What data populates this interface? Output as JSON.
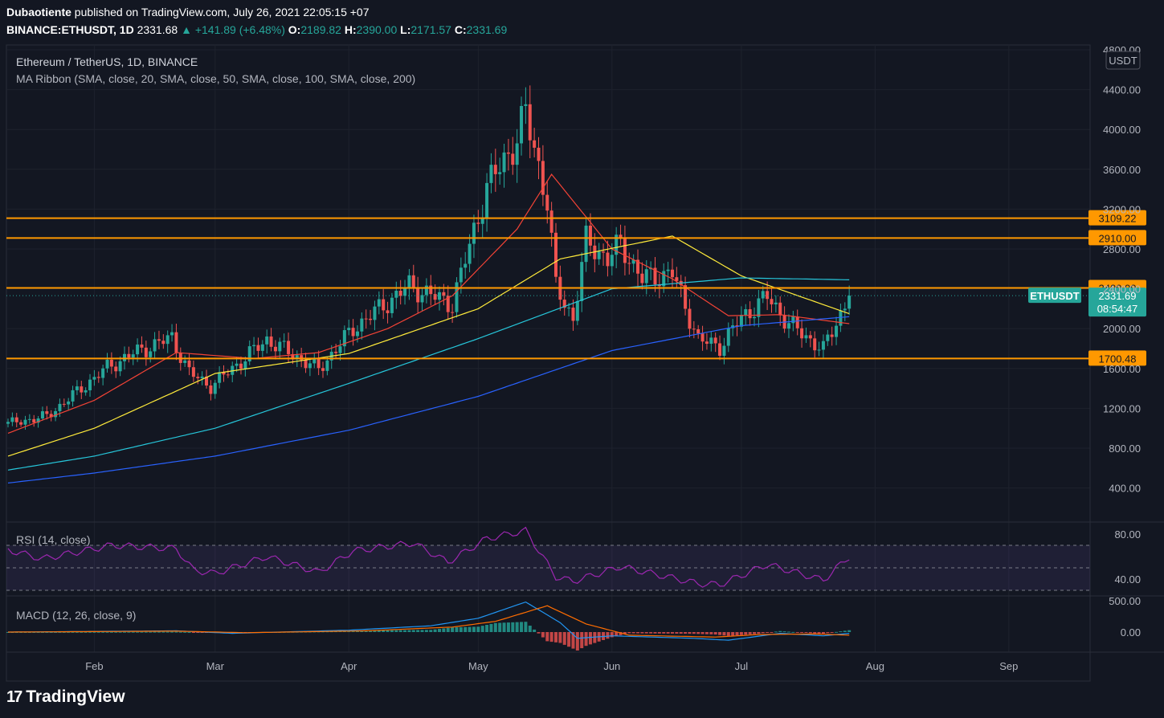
{
  "header": {
    "author": "Dubaotiente",
    "published_text": "published on TradingView.com, July 26, 2021 22:05:15 +07",
    "symbol": "BINANCE:ETHUSDT, 1D",
    "last": "2331.68",
    "change": "▲ +141.89 (+6.48%)",
    "o_label": "O:",
    "o": "2189.82",
    "h_label": "H:",
    "h": "2390.00",
    "l_label": "L:",
    "l": "2171.57",
    "c_label": "C:",
    "c": "2331.69"
  },
  "footer": {
    "brand": "TradingView",
    "logo": "17"
  },
  "colors": {
    "background": "#131722",
    "grid": "#1e222d",
    "up": "#26a69a",
    "down": "#ef5350",
    "level": "#ff9800",
    "ma20": "#f44336",
    "ma50": "#ffeb3b",
    "ma100": "#26c6da",
    "ma200": "#2962ff",
    "rsi": "#9c27b0",
    "macd": "#2196f3",
    "signal": "#ff6d00",
    "label_text": "#131722"
  },
  "chart_data": [
    {
      "type": "candlestick",
      "title": "Ethereum / TetherUS, 1D, BINANCE",
      "indicator_label": "MA Ribbon (SMA, close, 20, SMA, close, 50, SMA, close, 100, SMA, close, 200)",
      "x_ticks": [
        "Feb",
        "Mar",
        "Apr",
        "May",
        "Jun",
        "Jul",
        "Aug",
        "Sep"
      ],
      "x_tick_dates": [
        "2021-02-01",
        "2021-03-01",
        "2021-04-01",
        "2021-05-01",
        "2021-06-01",
        "2021-07-01",
        "2021-08-01",
        "2021-09-01"
      ],
      "x_range": [
        "2021-01-12",
        "2021-09-24"
      ],
      "y_ticks": [
        "4800.00",
        "4400.00",
        "4000.00",
        "3600.00",
        "3200.00",
        "2800.00",
        "2400.00",
        "2000.00",
        "1600.00",
        "1200.00",
        "800.00",
        "400.00"
      ],
      "y_range": [
        0,
        4800
      ],
      "currency": "USDT",
      "key_points": [
        {
          "date": "2021-01-12",
          "close": 1045
        },
        {
          "date": "2021-01-21",
          "close": 1120
        },
        {
          "date": "2021-02-04",
          "close": 1610
        },
        {
          "date": "2021-02-10",
          "close": 1750
        },
        {
          "date": "2021-02-19",
          "close": 1910
        },
        {
          "date": "2021-02-23",
          "close": 1560
        },
        {
          "date": "2021-02-28",
          "close": 1420
        },
        {
          "date": "2021-03-13",
          "close": 1890
        },
        {
          "date": "2021-03-25",
          "close": 1590
        },
        {
          "date": "2021-04-02",
          "close": 2000
        },
        {
          "date": "2021-04-15",
          "close": 2430
        },
        {
          "date": "2021-04-22",
          "close": 2300
        },
        {
          "date": "2021-04-25",
          "close": 2250
        },
        {
          "date": "2021-05-03",
          "close": 3420
        },
        {
          "date": "2021-05-10",
          "close": 3900
        },
        {
          "date": "2021-05-12",
          "close": 4170
        },
        {
          "date": "2021-05-17",
          "close": 3280
        },
        {
          "date": "2021-05-19",
          "close": 2420
        },
        {
          "date": "2021-05-23",
          "close": 2100
        },
        {
          "date": "2021-05-26",
          "close": 2880
        },
        {
          "date": "2021-05-31",
          "close": 2700
        },
        {
          "date": "2021-06-03",
          "close": 2850
        },
        {
          "date": "2021-06-08",
          "close": 2500
        },
        {
          "date": "2021-06-15",
          "close": 2560
        },
        {
          "date": "2021-06-21",
          "close": 1890
        },
        {
          "date": "2021-06-26",
          "close": 1820
        },
        {
          "date": "2021-07-01",
          "close": 2110
        },
        {
          "date": "2021-07-07",
          "close": 2320
        },
        {
          "date": "2021-07-12",
          "close": 2050
        },
        {
          "date": "2021-07-20",
          "close": 1790
        },
        {
          "date": "2021-07-26",
          "close": 2331.69
        }
      ],
      "moving_averages": {
        "ma20": [
          {
            "date": "2021-01-12",
            "value": 950
          },
          {
            "date": "2021-02-01",
            "value": 1280
          },
          {
            "date": "2021-02-20",
            "value": 1760
          },
          {
            "date": "2021-03-10",
            "value": 1700
          },
          {
            "date": "2021-03-25",
            "value": 1760
          },
          {
            "date": "2021-04-10",
            "value": 2000
          },
          {
            "date": "2021-04-25",
            "value": 2330
          },
          {
            "date": "2021-05-10",
            "value": 3000
          },
          {
            "date": "2021-05-18",
            "value": 3550
          },
          {
            "date": "2021-06-01",
            "value": 2800
          },
          {
            "date": "2021-06-15",
            "value": 2500
          },
          {
            "date": "2021-06-28",
            "value": 2130
          },
          {
            "date": "2021-07-10",
            "value": 2140
          },
          {
            "date": "2021-07-26",
            "value": 2050
          }
        ],
        "ma50": [
          {
            "date": "2021-01-12",
            "value": 720
          },
          {
            "date": "2021-02-01",
            "value": 1000
          },
          {
            "date": "2021-03-01",
            "value": 1550
          },
          {
            "date": "2021-04-01",
            "value": 1750
          },
          {
            "date": "2021-05-01",
            "value": 2200
          },
          {
            "date": "2021-05-20",
            "value": 2700
          },
          {
            "date": "2021-06-15",
            "value": 2930
          },
          {
            "date": "2021-07-01",
            "value": 2530
          },
          {
            "date": "2021-07-26",
            "value": 2150
          }
        ],
        "ma100": [
          {
            "date": "2021-01-12",
            "value": 580
          },
          {
            "date": "2021-02-01",
            "value": 720
          },
          {
            "date": "2021-03-01",
            "value": 1000
          },
          {
            "date": "2021-04-01",
            "value": 1450
          },
          {
            "date": "2021-05-01",
            "value": 1900
          },
          {
            "date": "2021-06-01",
            "value": 2400
          },
          {
            "date": "2021-07-01",
            "value": 2510
          },
          {
            "date": "2021-07-26",
            "value": 2490
          }
        ],
        "ma200": [
          {
            "date": "2021-01-12",
            "value": 450
          },
          {
            "date": "2021-02-01",
            "value": 550
          },
          {
            "date": "2021-03-01",
            "value": 720
          },
          {
            "date": "2021-04-01",
            "value": 980
          },
          {
            "date": "2021-05-01",
            "value": 1320
          },
          {
            "date": "2021-06-01",
            "value": 1780
          },
          {
            "date": "2021-07-01",
            "value": 2030
          },
          {
            "date": "2021-07-26",
            "value": 2120
          }
        ]
      },
      "horizontal_levels": [
        {
          "value": 3109.22,
          "label": "3109.22"
        },
        {
          "value": 2910.0,
          "label": "2910.00"
        },
        {
          "value": 2409.0,
          "label": "2409.00"
        },
        {
          "value": 1700.48,
          "label": "1700.48"
        }
      ],
      "price_label": {
        "symbol": "ETHUSDT",
        "price": "2331.69",
        "countdown": "08:54:47",
        "value": 2331.69
      }
    },
    {
      "type": "line",
      "title": "RSI (14, close)",
      "y_ticks": [
        "80.00",
        "40.00"
      ],
      "y_range": [
        30,
        85
      ],
      "bands": [
        70,
        50,
        30
      ],
      "values": [
        {
          "date": "2021-01-12",
          "value": 66
        },
        {
          "date": "2021-01-20",
          "value": 58
        },
        {
          "date": "2021-02-05",
          "value": 70
        },
        {
          "date": "2021-02-20",
          "value": 67
        },
        {
          "date": "2021-02-24",
          "value": 48
        },
        {
          "date": "2021-03-01",
          "value": 45
        },
        {
          "date": "2021-03-13",
          "value": 60
        },
        {
          "date": "2021-03-25",
          "value": 46
        },
        {
          "date": "2021-04-02",
          "value": 65
        },
        {
          "date": "2021-04-16",
          "value": 72
        },
        {
          "date": "2021-04-24",
          "value": 55
        },
        {
          "date": "2021-05-03",
          "value": 76
        },
        {
          "date": "2021-05-12",
          "value": 83
        },
        {
          "date": "2021-05-19",
          "value": 42
        },
        {
          "date": "2021-05-23",
          "value": 38
        },
        {
          "date": "2021-06-03",
          "value": 51
        },
        {
          "date": "2021-06-21",
          "value": 36
        },
        {
          "date": "2021-06-26",
          "value": 35
        },
        {
          "date": "2021-07-07",
          "value": 53
        },
        {
          "date": "2021-07-20",
          "value": 39
        },
        {
          "date": "2021-07-26",
          "value": 60
        }
      ]
    },
    {
      "type": "line",
      "title": "MACD (12, 26, close, 9)",
      "y_ticks": [
        "500.00",
        "0.00"
      ],
      "y_range": [
        -300,
        520
      ],
      "macd": [
        {
          "date": "2021-01-12",
          "value": 0
        },
        {
          "date": "2021-02-20",
          "value": 20
        },
        {
          "date": "2021-03-05",
          "value": -20
        },
        {
          "date": "2021-04-01",
          "value": 30
        },
        {
          "date": "2021-04-20",
          "value": 100
        },
        {
          "date": "2021-05-01",
          "value": 220
        },
        {
          "date": "2021-05-12",
          "value": 480
        },
        {
          "date": "2021-05-20",
          "value": 150
        },
        {
          "date": "2021-05-24",
          "value": -100
        },
        {
          "date": "2021-06-01",
          "value": -60
        },
        {
          "date": "2021-06-20",
          "value": -100
        },
        {
          "date": "2021-06-28",
          "value": -130
        },
        {
          "date": "2021-07-10",
          "value": -20
        },
        {
          "date": "2021-07-20",
          "value": -60
        },
        {
          "date": "2021-07-26",
          "value": -20
        }
      ],
      "signal": [
        {
          "date": "2021-01-12",
          "value": 0
        },
        {
          "date": "2021-02-20",
          "value": 15
        },
        {
          "date": "2021-03-08",
          "value": -10
        },
        {
          "date": "2021-04-05",
          "value": 20
        },
        {
          "date": "2021-04-25",
          "value": 80
        },
        {
          "date": "2021-05-05",
          "value": 170
        },
        {
          "date": "2021-05-17",
          "value": 420
        },
        {
          "date": "2021-05-26",
          "value": 130
        },
        {
          "date": "2021-06-05",
          "value": -50
        },
        {
          "date": "2021-06-25",
          "value": -80
        },
        {
          "date": "2021-07-05",
          "value": -40
        },
        {
          "date": "2021-07-18",
          "value": -30
        },
        {
          "date": "2021-07-26",
          "value": -50
        }
      ]
    }
  ]
}
